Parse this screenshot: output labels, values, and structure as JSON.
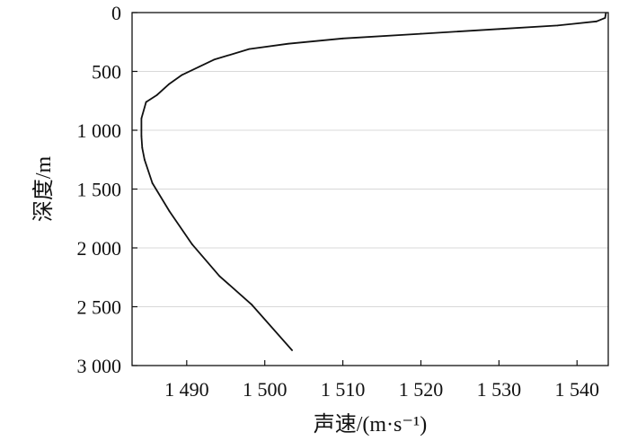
{
  "chart_data": {
    "type": "line",
    "title": "",
    "xlabel": "声速/(m·s⁻¹)",
    "ylabel": "深度/m",
    "xlim": [
      1483,
      1544
    ],
    "ylim": [
      3000,
      0
    ],
    "y_inverted": true,
    "x_ticks": [
      {
        "value": 1490,
        "label": "1 490"
      },
      {
        "value": 1500,
        "label": "1 500"
      },
      {
        "value": 1510,
        "label": "1 510"
      },
      {
        "value": 1520,
        "label": "1 520"
      },
      {
        "value": 1530,
        "label": "1 530"
      },
      {
        "value": 1540,
        "label": "1 540"
      }
    ],
    "y_ticks": [
      {
        "value": 0,
        "label": "0"
      },
      {
        "value": 500,
        "label": "500"
      },
      {
        "value": 1000,
        "label": "1 000"
      },
      {
        "value": 1500,
        "label": "1 500"
      },
      {
        "value": 2000,
        "label": "2 000"
      },
      {
        "value": 2500,
        "label": "2 500"
      },
      {
        "value": 3000,
        "label": "3 000"
      }
    ],
    "grid": {
      "horizontal": true,
      "vertical": false
    },
    "line_color": "#111111",
    "grid_color": "#d8d8d8",
    "series": [
      {
        "points": [
          {
            "x": 1543.7,
            "y": 5
          },
          {
            "x": 1543.6,
            "y": 45
          },
          {
            "x": 1542.5,
            "y": 75
          },
          {
            "x": 1537.5,
            "y": 110
          },
          {
            "x": 1530.0,
            "y": 140
          },
          {
            "x": 1520.0,
            "y": 180
          },
          {
            "x": 1510.0,
            "y": 220
          },
          {
            "x": 1503.0,
            "y": 265
          },
          {
            "x": 1498.0,
            "y": 310
          },
          {
            "x": 1493.5,
            "y": 400
          },
          {
            "x": 1491.6,
            "y": 460
          },
          {
            "x": 1489.4,
            "y": 530
          },
          {
            "x": 1487.7,
            "y": 610
          },
          {
            "x": 1486.2,
            "y": 700
          },
          {
            "x": 1484.8,
            "y": 760
          },
          {
            "x": 1484.2,
            "y": 900
          },
          {
            "x": 1484.2,
            "y": 1050
          },
          {
            "x": 1484.3,
            "y": 1150
          },
          {
            "x": 1484.6,
            "y": 1250
          },
          {
            "x": 1485.6,
            "y": 1450
          },
          {
            "x": 1487.8,
            "y": 1690
          },
          {
            "x": 1490.7,
            "y": 1970
          },
          {
            "x": 1494.2,
            "y": 2240
          },
          {
            "x": 1498.3,
            "y": 2480
          },
          {
            "x": 1503.5,
            "y": 2870
          }
        ]
      }
    ]
  }
}
